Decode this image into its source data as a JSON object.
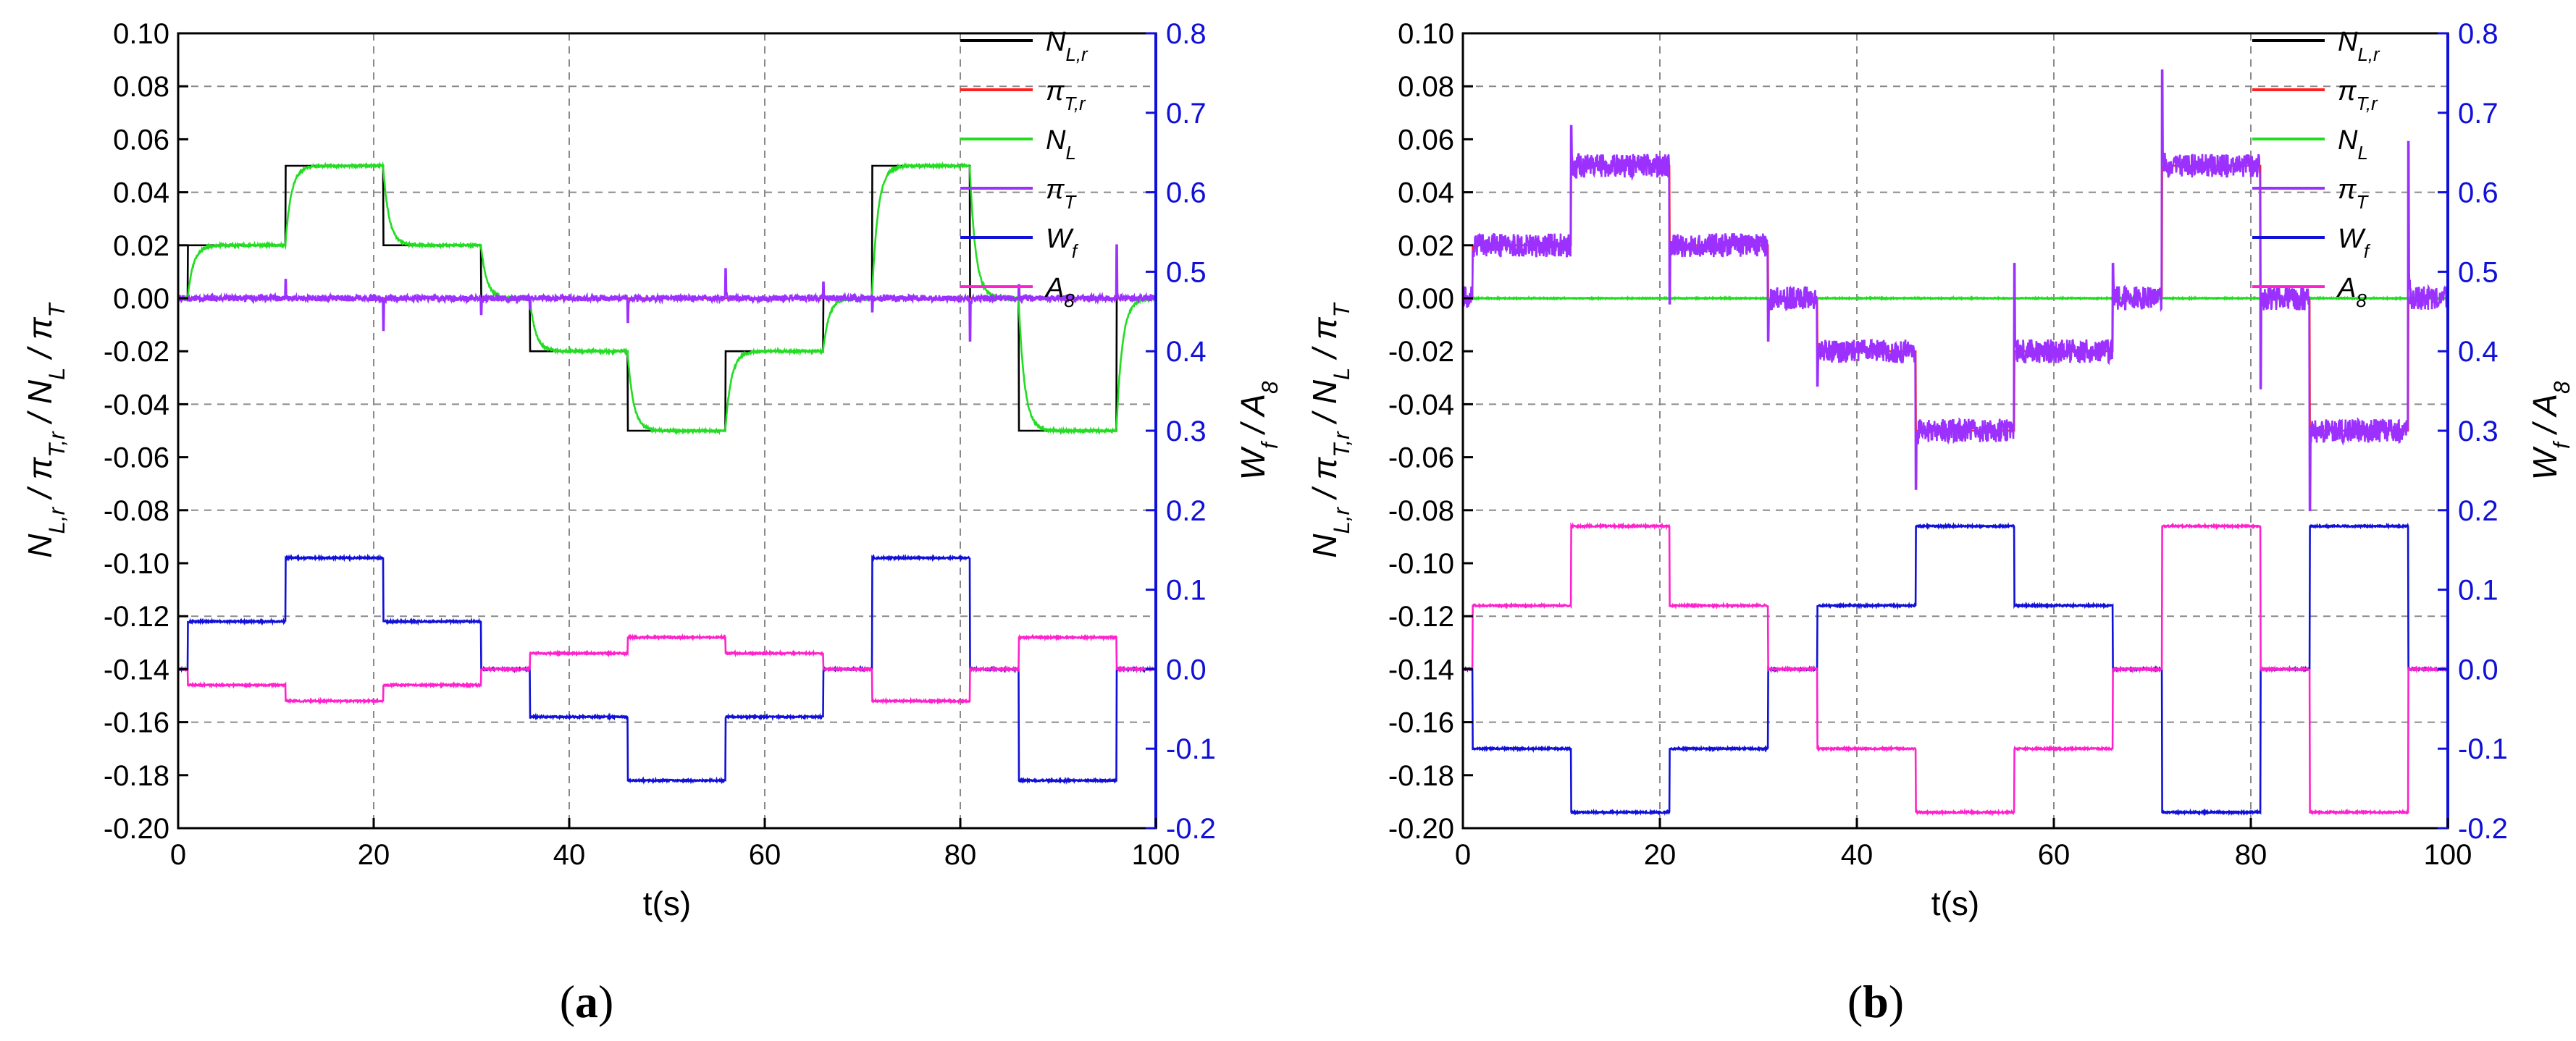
{
  "panels": [
    {
      "id": "a",
      "label": "(a)",
      "xlabel": "t(s)",
      "ylabel_left": {
        "base": [
          [
            "N",
            "L,r"
          ],
          [
            "π",
            "T,r"
          ],
          [
            "N",
            "L"
          ],
          [
            "π",
            "T"
          ]
        ]
      },
      "ylabel_right": {
        "base": [
          [
            "W",
            "f"
          ],
          [
            "A",
            "8"
          ]
        ]
      },
      "x_ticks": [
        "0",
        "20",
        "40",
        "60",
        "80",
        "100"
      ],
      "y_left_ticks": [
        "0.10",
        "0.08",
        "0.06",
        "0.04",
        "0.02",
        "0.00",
        "-0.02",
        "-0.04",
        "-0.06",
        "-0.08",
        "-0.10",
        "-0.12",
        "-0.14",
        "-0.16",
        "-0.18",
        "-0.20"
      ],
      "y_right_ticks": [
        "0.8",
        "0.7",
        "0.6",
        "0.5",
        "0.4",
        "0.3",
        "0.2",
        "0.1",
        "0.0",
        "-0.1",
        "-0.2"
      ],
      "legend": [
        {
          "main": "N",
          "sub": "L,r",
          "color": "#000000"
        },
        {
          "main": "π",
          "sub": "T,r",
          "color": "#ff2020"
        },
        {
          "main": "N",
          "sub": "L",
          "color": "#22dd22"
        },
        {
          "main": "π",
          "sub": "T",
          "color": "#9b30ff"
        },
        {
          "main": "W",
          "sub": "f",
          "color": "#1010d8"
        },
        {
          "main": "A",
          "sub": "8",
          "color": "#ff22cc"
        }
      ]
    },
    {
      "id": "b",
      "label": "(b)",
      "xlabel": "t(s)",
      "ylabel_left": {
        "base": [
          [
            "N",
            "L,r"
          ],
          [
            "π",
            "T,r"
          ],
          [
            "N",
            "L"
          ],
          [
            "π",
            "T"
          ]
        ]
      },
      "ylabel_right": {
        "base": [
          [
            "W",
            "f"
          ],
          [
            "A",
            "8"
          ]
        ]
      },
      "x_ticks": [
        "0",
        "20",
        "40",
        "60",
        "80",
        "100"
      ],
      "y_left_ticks": [
        "0.10",
        "0.08",
        "0.06",
        "0.04",
        "0.02",
        "0.00",
        "-0.02",
        "-0.04",
        "-0.06",
        "-0.08",
        "-0.10",
        "-0.12",
        "-0.14",
        "-0.16",
        "-0.18",
        "-0.20"
      ],
      "y_right_ticks": [
        "0.8",
        "0.7",
        "0.6",
        "0.5",
        "0.4",
        "0.3",
        "0.2",
        "0.1",
        "0.0",
        "-0.1",
        "-0.2"
      ],
      "legend": [
        {
          "main": "N",
          "sub": "L,r",
          "color": "#000000"
        },
        {
          "main": "π",
          "sub": "T,r",
          "color": "#ff2020"
        },
        {
          "main": "N",
          "sub": "L",
          "color": "#22dd22"
        },
        {
          "main": "π",
          "sub": "T",
          "color": "#9b30ff"
        },
        {
          "main": "W",
          "sub": "f",
          "color": "#1010d8"
        },
        {
          "main": "A",
          "sub": "8",
          "color": "#ff22cc"
        }
      ]
    }
  ],
  "chart_data": [
    {
      "type": "line",
      "panel": "a",
      "xlabel": "t(s)",
      "xlim": [
        0,
        100
      ],
      "ylim_left": [
        -0.2,
        0.1
      ],
      "ylim_right": [
        -0.2,
        0.8
      ],
      "series": [
        {
          "name": "N_L,r",
          "axis": "left",
          "color": "#000000",
          "noise": 0,
          "lag": 0,
          "steps": [
            [
              0,
              0
            ],
            [
              1,
              0.02
            ],
            [
              11,
              0.05
            ],
            [
              21,
              0.02
            ],
            [
              31,
              0
            ],
            [
              36,
              -0.02
            ],
            [
              46,
              -0.05
            ],
            [
              56,
              -0.02
            ],
            [
              66,
              0
            ],
            [
              71,
              0.05
            ],
            [
              81,
              0
            ],
            [
              86,
              -0.05
            ],
            [
              96,
              0
            ],
            [
              100,
              0
            ]
          ]
        },
        {
          "name": "π_T,r",
          "axis": "left",
          "color": "#ff2020",
          "noise": 0,
          "lag": 0,
          "steps": [
            [
              0,
              0
            ],
            [
              100,
              0
            ]
          ]
        },
        {
          "name": "N_L",
          "axis": "left",
          "color": "#22dd22",
          "noise": 0.0004,
          "lag": 0.6,
          "steps": [
            [
              0,
              0
            ],
            [
              1,
              0.02
            ],
            [
              11,
              0.05
            ],
            [
              21,
              0.02
            ],
            [
              31,
              0
            ],
            [
              36,
              -0.02
            ],
            [
              46,
              -0.05
            ],
            [
              56,
              -0.02
            ],
            [
              66,
              0
            ],
            [
              71,
              0.05
            ],
            [
              81,
              0
            ],
            [
              86,
              -0.05
            ],
            [
              96,
              0
            ],
            [
              100,
              0
            ]
          ]
        },
        {
          "name": "π_T",
          "axis": "left",
          "color": "#9b30ff",
          "noise": 0.0012,
          "lag": 0,
          "steps": [
            [
              0,
              0
            ],
            [
              100,
              0
            ]
          ],
          "spikes": [
            [
              11,
              0.007
            ],
            [
              21,
              -0.012
            ],
            [
              31,
              -0.006
            ],
            [
              36,
              -0.004
            ],
            [
              46,
              -0.009
            ],
            [
              56,
              0.011
            ],
            [
              66,
              0.006
            ],
            [
              71,
              -0.005
            ],
            [
              81,
              -0.016
            ],
            [
              86,
              0.005
            ],
            [
              96,
              0.02
            ]
          ]
        },
        {
          "name": "W_f",
          "axis": "right",
          "color": "#1010d8",
          "noise": 0.001,
          "lag": 0,
          "steps": [
            [
              0,
              0.0
            ],
            [
              1,
              0.06
            ],
            [
              11,
              0.14
            ],
            [
              21,
              0.06
            ],
            [
              31,
              0.0
            ],
            [
              36,
              -0.06
            ],
            [
              46,
              -0.14
            ],
            [
              56,
              -0.06
            ],
            [
              66,
              0.0
            ],
            [
              71,
              0.14
            ],
            [
              81,
              0.0
            ],
            [
              86,
              -0.14
            ],
            [
              96,
              0.0
            ],
            [
              100,
              0.0
            ]
          ]
        },
        {
          "name": "A_8",
          "axis": "right",
          "color": "#ff22cc",
          "noise": 0.001,
          "lag": 0,
          "steps": [
            [
              0,
              0.0
            ],
            [
              1,
              -0.02
            ],
            [
              11,
              -0.04
            ],
            [
              21,
              -0.02
            ],
            [
              31,
              0.0
            ],
            [
              36,
              0.02
            ],
            [
              46,
              0.04
            ],
            [
              56,
              0.02
            ],
            [
              66,
              0.0
            ],
            [
              71,
              -0.04
            ],
            [
              81,
              0.0
            ],
            [
              86,
              0.04
            ],
            [
              96,
              0.0
            ],
            [
              100,
              0.0
            ]
          ]
        }
      ]
    },
    {
      "type": "line",
      "panel": "b",
      "xlabel": "t(s)",
      "xlim": [
        0,
        100
      ],
      "ylim_left": [
        -0.2,
        0.1
      ],
      "ylim_right": [
        -0.2,
        0.8
      ],
      "series": [
        {
          "name": "N_L,r",
          "axis": "left",
          "color": "#000000",
          "noise": 0,
          "lag": 0,
          "steps": [
            [
              0,
              0
            ],
            [
              100,
              0
            ]
          ]
        },
        {
          "name": "π_T,r",
          "axis": "left",
          "color": "#ff2020",
          "noise": 0,
          "lag": 0,
          "steps": [
            [
              0,
              0
            ],
            [
              1,
              0.02
            ],
            [
              11,
              0.05
            ],
            [
              21,
              0.02
            ],
            [
              31,
              0
            ],
            [
              36,
              -0.02
            ],
            [
              46,
              -0.05
            ],
            [
              56,
              -0.02
            ],
            [
              66,
              0
            ],
            [
              71,
              0.05
            ],
            [
              81,
              0
            ],
            [
              86,
              -0.05
            ],
            [
              96,
              0
            ],
            [
              100,
              0
            ]
          ]
        },
        {
          "name": "N_L",
          "axis": "left",
          "color": "#22dd22",
          "noise": 0.0002,
          "lag": 0,
          "steps": [
            [
              0,
              0
            ],
            [
              100,
              0
            ]
          ]
        },
        {
          "name": "π_T",
          "axis": "left",
          "color": "#9b30ff",
          "noise": 0.0045,
          "lag": 0,
          "steps": [
            [
              0,
              0
            ],
            [
              1,
              0.02
            ],
            [
              11,
              0.05
            ],
            [
              21,
              0.02
            ],
            [
              31,
              0
            ],
            [
              36,
              -0.02
            ],
            [
              46,
              -0.05
            ],
            [
              56,
              -0.02
            ],
            [
              66,
              0
            ],
            [
              71,
              0.05
            ],
            [
              81,
              0
            ],
            [
              86,
              -0.05
            ],
            [
              96,
              0
            ],
            [
              100,
              0
            ]
          ],
          "spikes": [
            [
              11,
              0.065
            ],
            [
              21,
              -0.002
            ],
            [
              31,
              -0.016
            ],
            [
              36,
              -0.033
            ],
            [
              46,
              -0.072
            ],
            [
              56,
              0.013
            ],
            [
              66,
              0.013
            ],
            [
              71,
              0.086
            ],
            [
              81,
              -0.034
            ],
            [
              86,
              -0.08
            ],
            [
              96,
              0.059
            ]
          ]
        },
        {
          "name": "W_f",
          "axis": "right",
          "color": "#1010d8",
          "noise": 0.001,
          "lag": 0,
          "steps": [
            [
              0,
              0.0
            ],
            [
              1,
              -0.1
            ],
            [
              11,
              -0.18
            ],
            [
              21,
              -0.1
            ],
            [
              31,
              0.0
            ],
            [
              36,
              0.08
            ],
            [
              46,
              0.18
            ],
            [
              56,
              0.08
            ],
            [
              66,
              0.0
            ],
            [
              71,
              -0.18
            ],
            [
              81,
              0.0
            ],
            [
              86,
              0.18
            ],
            [
              96,
              0.0
            ],
            [
              100,
              0.0
            ]
          ]
        },
        {
          "name": "A_8",
          "axis": "right",
          "color": "#ff22cc",
          "noise": 0.001,
          "lag": 0,
          "steps": [
            [
              0,
              0.0
            ],
            [
              1,
              0.08
            ],
            [
              11,
              0.18
            ],
            [
              21,
              0.08
            ],
            [
              31,
              0.0
            ],
            [
              36,
              -0.1
            ],
            [
              46,
              -0.18
            ],
            [
              56,
              -0.1
            ],
            [
              66,
              0.0
            ],
            [
              71,
              0.18
            ],
            [
              81,
              0.0
            ],
            [
              86,
              -0.18
            ],
            [
              96,
              0.0
            ],
            [
              100,
              0.0
            ]
          ]
        }
      ]
    }
  ]
}
